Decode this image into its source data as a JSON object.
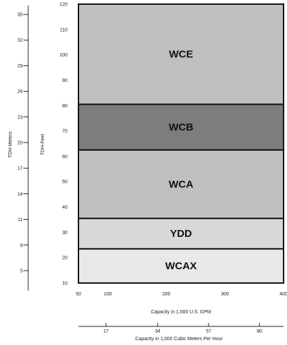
{
  "chart_data": {
    "type": "area",
    "title": "",
    "xlabel": "Capacity in 1,000 U.S. GPM",
    "ylabel": "TDH-Feet",
    "xlim": [
      50,
      400
    ],
    "ylim": [
      10,
      120
    ],
    "x_ticks": [
      50,
      100,
      200,
      300,
      400
    ],
    "y_ticks": [
      10,
      20,
      30,
      40,
      50,
      60,
      70,
      80,
      90,
      100,
      110,
      120
    ],
    "secondary_y": {
      "label": "TDH-Meters",
      "ticks": [
        5,
        8,
        11,
        14,
        17,
        20,
        23,
        26,
        29,
        32,
        35
      ]
    },
    "secondary_x": {
      "label": "Capacity in 1,000 Cubic Meters Per Hour",
      "ticks": [
        17,
        34,
        57,
        80
      ]
    },
    "bands": [
      {
        "name": "WCAX",
        "y_range": [
          10,
          23.5
        ],
        "color": "#e8e8e8"
      },
      {
        "name": "YDD",
        "y_range": [
          23.5,
          35.5
        ],
        "color": "#d8d8d8"
      },
      {
        "name": "WCA",
        "y_range": [
          35.5,
          62.5
        ],
        "color": "#c0c0c0"
      },
      {
        "name": "WCB",
        "y_range": [
          62.5,
          80.5
        ],
        "color": "#7d7d7d"
      },
      {
        "name": "WCE",
        "y_range": [
          80.5,
          120
        ],
        "color": "#c0c0c0"
      }
    ]
  }
}
